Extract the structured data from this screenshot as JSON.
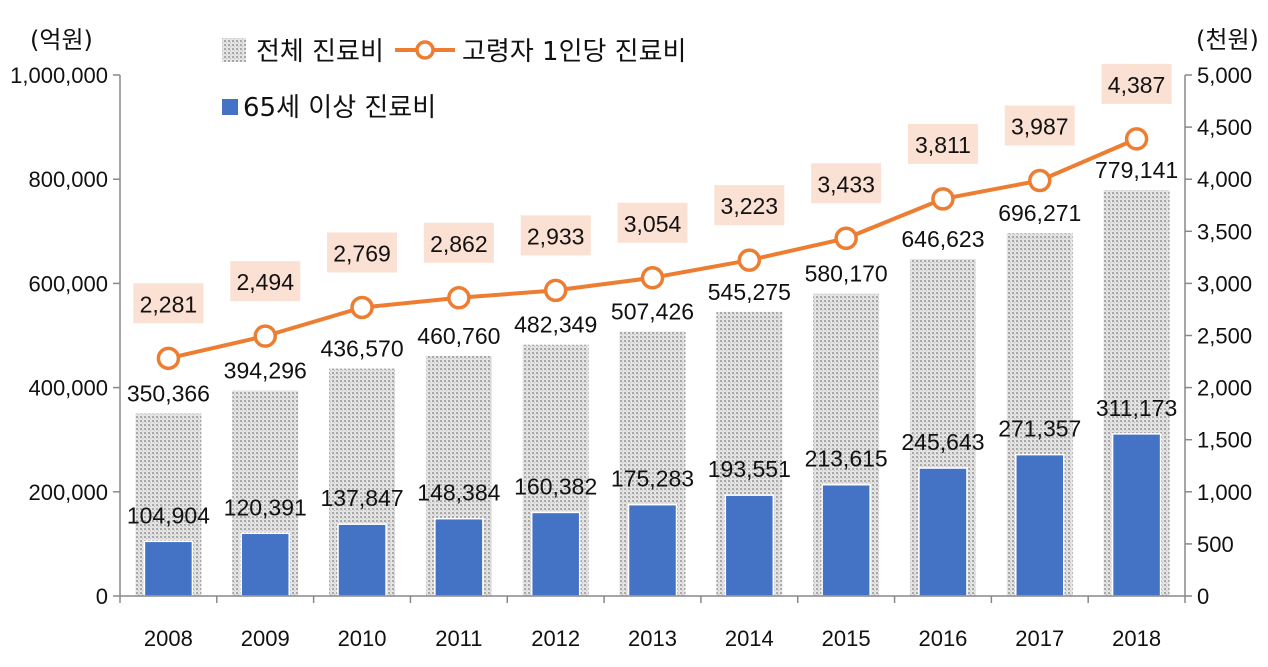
{
  "chart_data": {
    "type": "bar",
    "categories": [
      "2008",
      "2009",
      "2010",
      "2011",
      "2012",
      "2013",
      "2014",
      "2015",
      "2016",
      "2017",
      "2018"
    ],
    "series": [
      {
        "name": "전체 진료비",
        "kind": "bar",
        "axis": "left",
        "values": [
          350366,
          394296,
          436570,
          460760,
          482349,
          507426,
          545275,
          580170,
          646623,
          696271,
          779141
        ],
        "labels": [
          "350,366",
          "394,296",
          "436,570",
          "460,760",
          "482,349",
          "507,426",
          "545,275",
          "580,170",
          "646,623",
          "696,271",
          "779,141"
        ],
        "color": "#cfcfcf"
      },
      {
        "name": "65세 이상 진료비",
        "kind": "bar",
        "axis": "left",
        "values": [
          104904,
          120391,
          137847,
          148384,
          160382,
          175283,
          193551,
          213615,
          245643,
          271357,
          311173
        ],
        "labels": [
          "104,904",
          "120,391",
          "137,847",
          "148,384",
          "160,382",
          "175,283",
          "193,551",
          "213,615",
          "245,643",
          "271,357",
          "311,173"
        ],
        "color": "#4472c4"
      },
      {
        "name": "고령자 1인당 진료비",
        "kind": "line",
        "axis": "right",
        "values": [
          2281,
          2494,
          2769,
          2862,
          2933,
          3054,
          3223,
          3433,
          3811,
          3987,
          4387
        ],
        "labels": [
          "2,281",
          "2,494",
          "2,769",
          "2,862",
          "2,933",
          "3,054",
          "3,223",
          "3,433",
          "3,811",
          "3,987",
          "4,387"
        ],
        "color": "#ed7d31",
        "label_bg": "#fbe1d3"
      }
    ],
    "y_left": {
      "title": "(억원)",
      "ylim": [
        0,
        1000000
      ],
      "ticks": [
        0,
        200000,
        400000,
        600000,
        800000,
        1000000
      ],
      "tick_labels": [
        "0",
        "200,000",
        "400,000",
        "600,000",
        "800,000",
        "1,000,000"
      ]
    },
    "y_right": {
      "title": "(천원)",
      "ylim": [
        0,
        5000
      ],
      "ticks": [
        0,
        500,
        1000,
        1500,
        2000,
        2500,
        3000,
        3500,
        4000,
        4500,
        5000
      ],
      "tick_labels": [
        "0",
        "500",
        "1,000",
        "1,500",
        "2,000",
        "2,500",
        "3,000",
        "3,500",
        "4,000",
        "4,500",
        "5,000"
      ]
    },
    "legend": [
      {
        "name": "전체 진료비",
        "symbol": "pattern-square"
      },
      {
        "name": "고령자 1인당 진료비",
        "symbol": "line-marker"
      },
      {
        "name": "65세 이상 진료비",
        "symbol": "square"
      }
    ],
    "legend_position": "top-left",
    "grid": false
  }
}
